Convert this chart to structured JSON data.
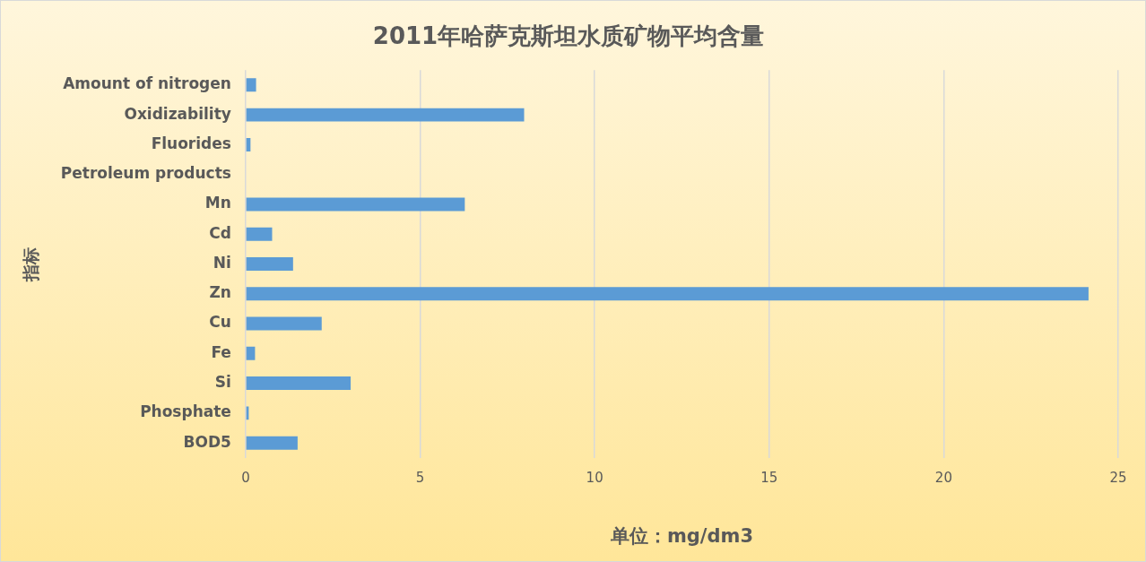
{
  "chart_data": {
    "type": "bar",
    "orientation": "horizontal",
    "title": "2011年哈萨克斯坦水质矿物平均含量",
    "xlabel": "单位：mg/dm3",
    "ylabel": "指标",
    "categories": [
      "Amount of nitrogen",
      "Oxidizability",
      "Fluorides",
      "Petroleum products",
      "Mn",
      "Cd",
      "Ni",
      "Zn",
      "Cu",
      "Fe",
      "Si",
      "Phosphate",
      "BOD5"
    ],
    "values": [
      0.3,
      7.98,
      0.14,
      0,
      6.28,
      0.76,
      1.36,
      24.15,
      2.18,
      0.27,
      3.01,
      0.09,
      1.49
    ],
    "color": "#5b9bd5",
    "xlim": [
      0,
      25
    ],
    "xticks": [
      0,
      5,
      10,
      15,
      20,
      25
    ],
    "grid": "x",
    "legend": false
  }
}
